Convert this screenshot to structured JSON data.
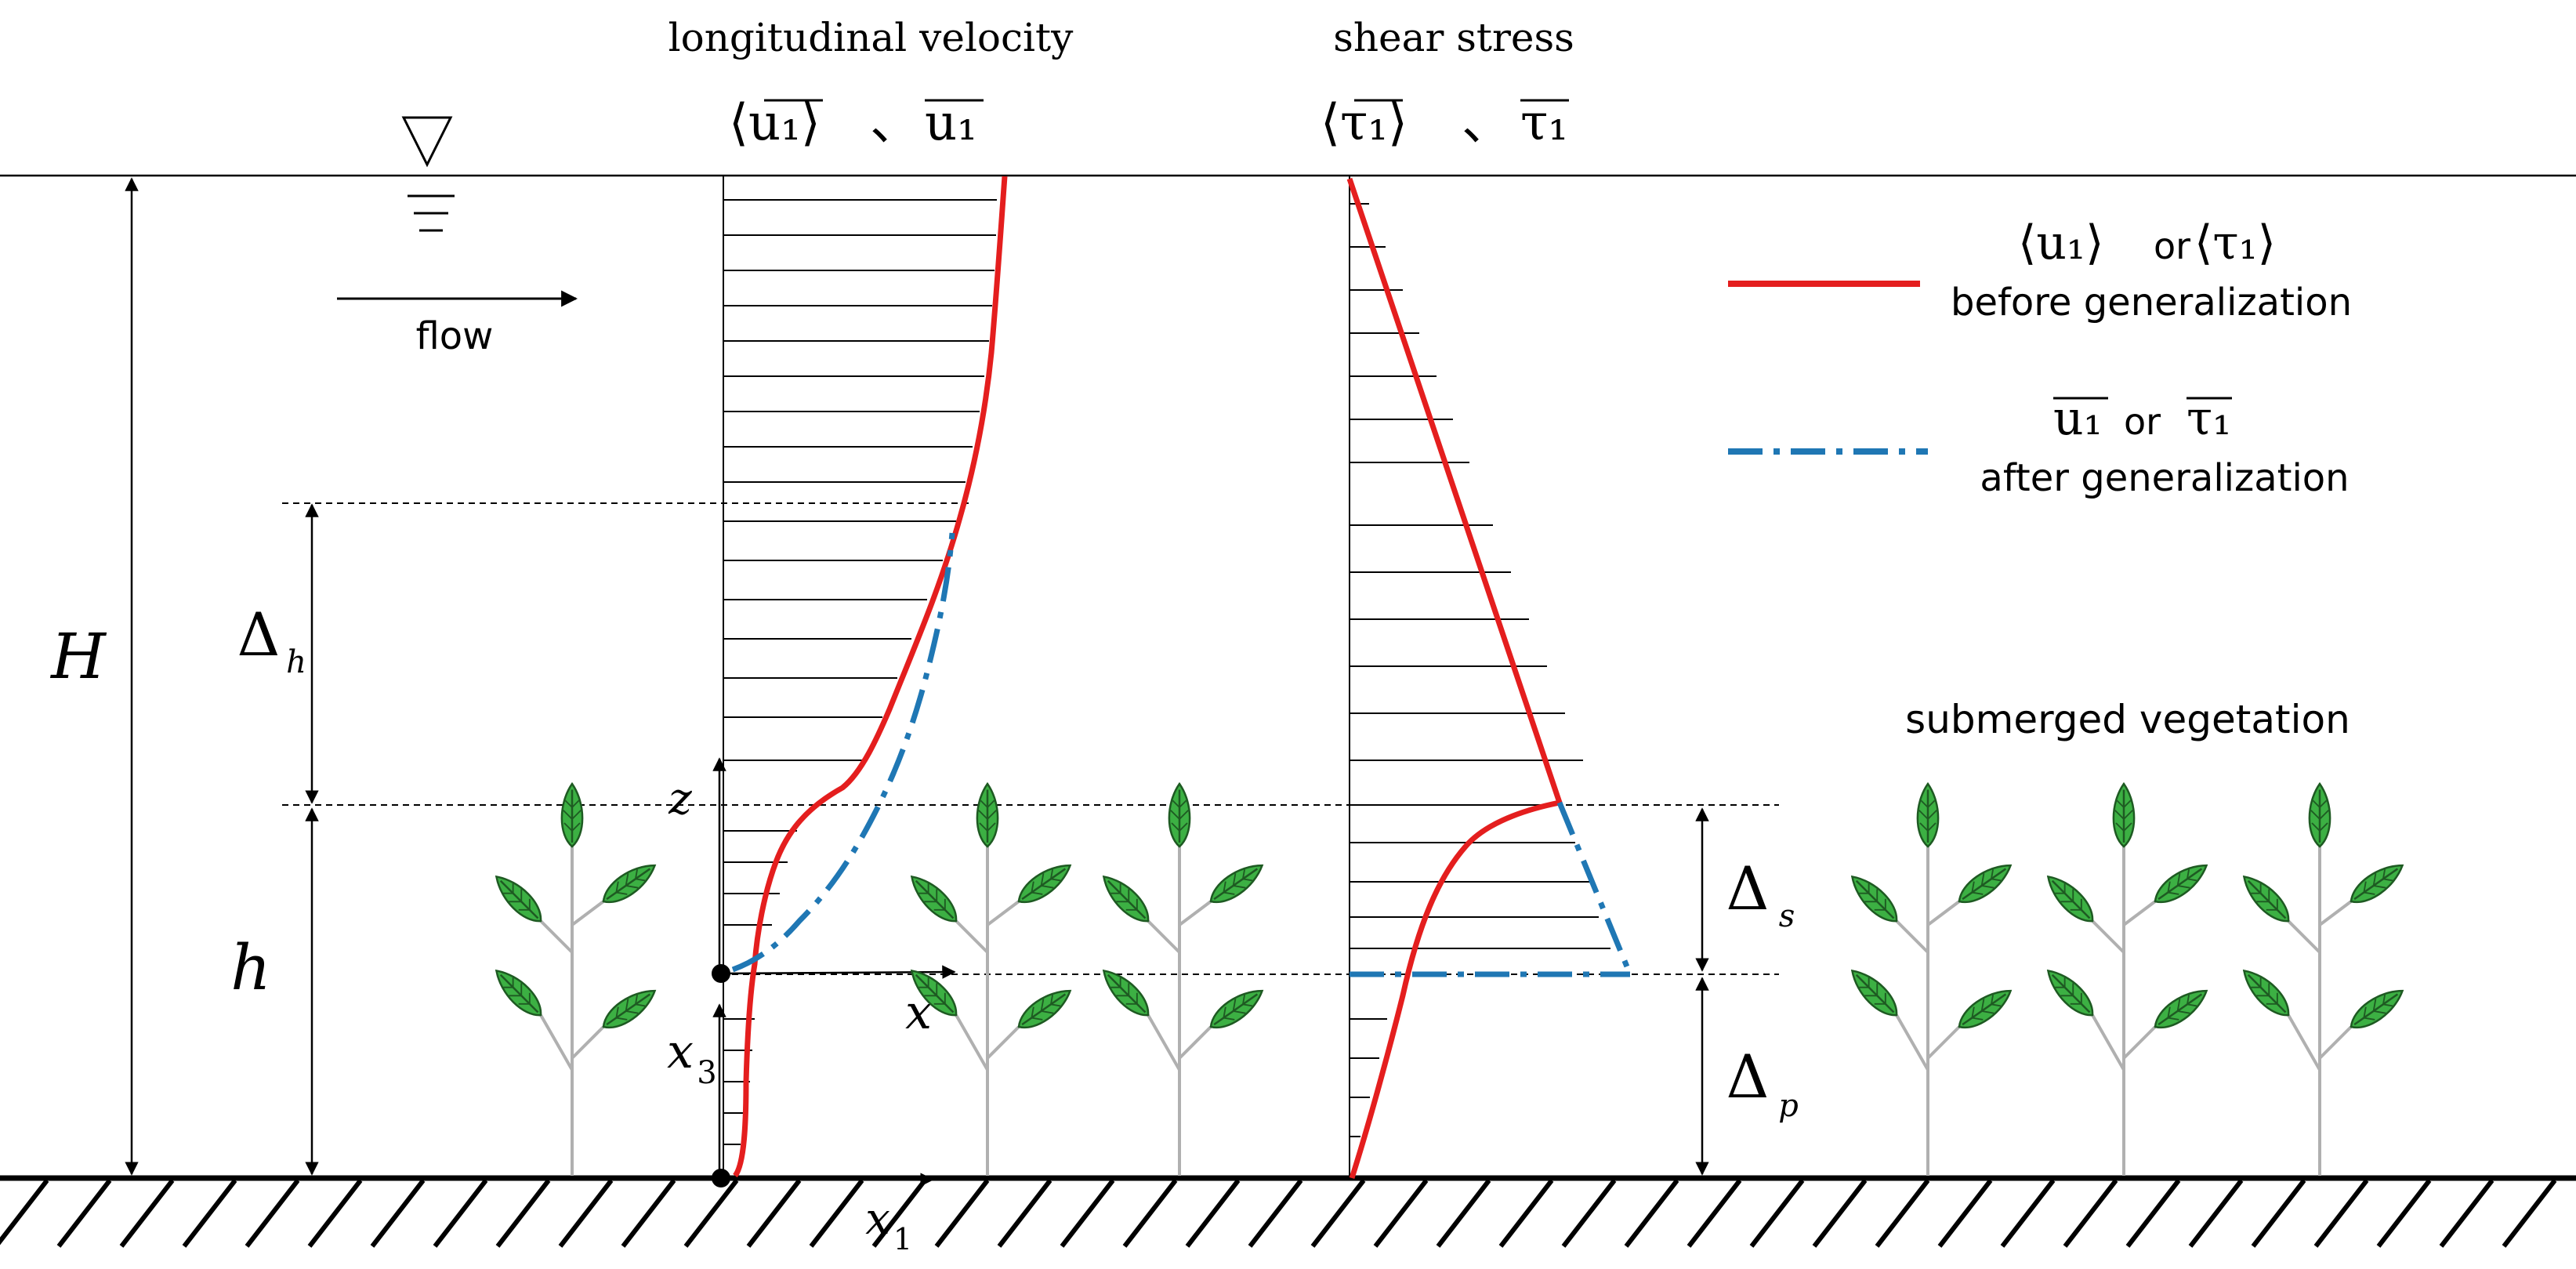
{
  "titles": {
    "velocity": "longitudinal velocity",
    "shear": "shear stress"
  },
  "symbols": {
    "u_angle": "⟨u₁⟩",
    "u_sep": "、",
    "u_bar": "u₁",
    "tau_angle": "⟨τ₁⟩",
    "tau_sep": "、",
    "tau_bar": "τ₁"
  },
  "flow_label": "flow",
  "dimensions": {
    "H": "H",
    "h": "h",
    "delta_h": "Δ",
    "delta_h_sub": "h",
    "delta_s": "Δ",
    "delta_s_sub": "s",
    "delta_p": "Δ",
    "delta_p_sub": "p"
  },
  "axes": {
    "z": "z",
    "x": "x",
    "x3": "x",
    "x3_sub": "3",
    "x1": "x",
    "x1_sub": "1"
  },
  "legend": {
    "red_symbols_a": "⟨u₁⟩",
    "red_or": "or",
    "red_symbols_b": "⟨τ₁⟩",
    "red_desc": "before generalization",
    "blue_symbols_a": "u₁",
    "blue_or": "or",
    "blue_symbols_b": "τ₁",
    "blue_desc": "after generalization"
  },
  "vegetation_label": "submerged vegetation",
  "colors": {
    "red": "#e41e1e",
    "blue": "#1f77b4",
    "leaf": "#3cb043",
    "stem": "#b0b0b0"
  }
}
